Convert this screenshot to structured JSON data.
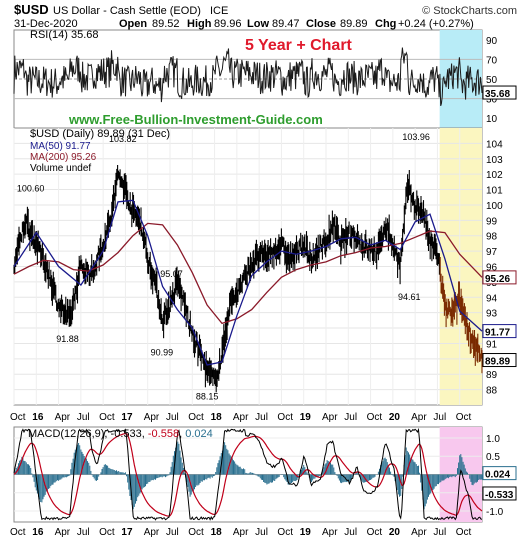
{
  "header": {
    "symbol": "$USD",
    "name": "US Dollar - Cash Settle (EOD)",
    "exchange": "ICE",
    "date": "31-Dec-2020",
    "open_label": "Open",
    "open": "89.52",
    "high_label": "High",
    "high": "89.96",
    "low_label": "Low",
    "low": "89.47",
    "close_label": "Close",
    "close": "89.89",
    "chg_label": "Chg",
    "chg": "+0.24 (+0.27%)",
    "brand": "© StockCharts.com",
    "tagline": "5 Year + Chart"
  },
  "colors": {
    "price": "#000000",
    "ma50": "#1a1a8c",
    "ma200": "#8b1a2a",
    "rsi_fill": "#1a1a1a",
    "macd_hist": "#2a6f8f",
    "cyan_band": "#b8ecf7",
    "yellow_band": "#fbf6c0",
    "pink_band": "#f8c8ee",
    "tagline": "#e0192b",
    "watermark": "#2e9d2e",
    "badge_red": "#c0001a"
  },
  "chart_data": [
    {
      "type": "line",
      "id": "rsi",
      "legend": "RSI(14) 35.68",
      "last_value": "35.68",
      "ylim": [
        0,
        100
      ],
      "y_ticks": [
        10,
        30,
        50,
        70,
        90
      ],
      "reference_lines": [
        30,
        50,
        70
      ]
    },
    {
      "type": "line",
      "id": "price",
      "title": "$USD (Daily) 89.89 (31 Dec)",
      "watermark": "www.Free-Bullion-Investment-Guide.com",
      "legend": [
        {
          "label": "MA(50) 91.77",
          "color": "#1a1a8c"
        },
        {
          "label": "MA(200) 95.26",
          "color": "#8b1a2a"
        },
        {
          "label": "Volume undef",
          "color": "#555555"
        }
      ],
      "ylim": [
        87,
        105
      ],
      "y_ticks": [
        88,
        89,
        90,
        91,
        92,
        93,
        94,
        95,
        96,
        97,
        98,
        99,
        100,
        101,
        102,
        103,
        104
      ],
      "x_ticks": [
        "Oct",
        "16",
        "Apr",
        "Jul",
        "Oct",
        "17",
        "Apr",
        "Jul",
        "Oct",
        "18",
        "Apr",
        "Jul",
        "Oct",
        "19",
        "Apr",
        "Jul",
        "Oct",
        "20",
        "Apr",
        "Jul",
        "Oct"
      ],
      "bold_x_ticks": [
        "16",
        "17",
        "18",
        "19",
        "20"
      ],
      "annotations": [
        {
          "label": "100.60",
          "x": 2.0,
          "y": 100.6
        },
        {
          "label": "103.82",
          "x": 14.4,
          "y": 103.82
        },
        {
          "label": "91.88",
          "x": 7.3,
          "y": 91.88
        },
        {
          "label": "90.99",
          "x": 20.0,
          "y": 90.99
        },
        {
          "label": "95.07",
          "x": 21.3,
          "y": 95.07
        },
        {
          "label": "88.15",
          "x": 26.1,
          "y": 88.15
        },
        {
          "label": "103.96",
          "x": 53.9,
          "y": 103.96
        },
        {
          "label": "94.61",
          "x": 53.3,
          "y": 94.61
        }
      ],
      "series": [
        {
          "name": "$USD",
          "x": [
            0,
            1.5,
            3,
            4.5,
            6,
            7.5,
            9,
            10.5,
            12,
            13,
            14,
            15,
            16,
            17,
            18,
            19,
            20,
            21,
            22,
            23,
            24,
            25,
            26,
            27,
            28,
            29,
            30,
            31,
            32,
            33,
            34,
            35,
            36,
            37,
            38,
            39,
            40,
            41,
            42,
            43,
            44,
            45,
            46,
            47,
            48,
            49,
            50,
            51,
            52,
            53,
            54,
            55,
            56,
            57,
            58,
            59,
            60,
            61,
            62,
            63
          ],
          "values": [
            96.0,
            99.0,
            97.5,
            95.8,
            93.5,
            92.5,
            96.0,
            95.5,
            97.5,
            99.0,
            102.0,
            101.0,
            99.5,
            99.0,
            96.5,
            95.0,
            92.5,
            93.5,
            95.0,
            93.5,
            91.5,
            90.5,
            89.2,
            88.6,
            90.2,
            93.5,
            94.3,
            95.2,
            96.2,
            96.7,
            96.6,
            97.0,
            97.4,
            96.5,
            96.8,
            97.6,
            96.2,
            97.2,
            97.6,
            98.6,
            97.5,
            98.1,
            98.0,
            97.3,
            97.1,
            96.9,
            98.8,
            97.4,
            96.0,
            101.3,
            99.9,
            99.6,
            97.5,
            96.9,
            93.3,
            92.9,
            93.9,
            92.1,
            90.9,
            89.9
          ]
        },
        {
          "name": "MA(50)",
          "x": [
            0,
            3,
            6,
            9,
            12,
            14,
            16,
            18,
            20,
            22,
            24,
            26,
            28,
            30,
            32,
            34,
            36,
            38,
            40,
            42,
            44,
            46,
            48,
            50,
            52,
            54,
            56,
            58,
            60,
            63
          ],
          "values": [
            96.0,
            98.2,
            96.0,
            94.8,
            97.0,
            100.2,
            100.3,
            98.0,
            94.7,
            93.2,
            92.0,
            89.6,
            89.8,
            92.8,
            95.4,
            96.3,
            97.0,
            96.8,
            97.0,
            97.3,
            97.8,
            97.9,
            97.4,
            97.7,
            97.1,
            98.9,
            99.4,
            96.5,
            93.1,
            91.8
          ]
        },
        {
          "name": "MA(200)",
          "x": [
            0,
            2,
            4,
            6,
            8,
            10,
            12,
            14,
            16,
            18,
            20,
            22,
            24,
            26,
            28,
            30,
            32,
            34,
            36,
            38,
            40,
            42,
            44,
            46,
            48,
            50,
            52,
            54,
            56,
            58,
            60,
            63
          ],
          "values": [
            95.5,
            96.0,
            96.4,
            96.3,
            95.8,
            95.7,
            96.1,
            96.9,
            98.0,
            98.8,
            98.7,
            97.4,
            95.6,
            93.5,
            92.3,
            92.6,
            93.2,
            94.3,
            95.3,
            95.8,
            96.1,
            96.3,
            96.7,
            96.9,
            97.2,
            97.3,
            97.5,
            97.9,
            98.3,
            98.2,
            96.8,
            95.3
          ]
        }
      ],
      "last_value_badges": [
        {
          "label": "95.26",
          "y": 95.26
        },
        {
          "label": "91.77",
          "y": 91.77
        },
        {
          "label": "89.89",
          "y": 89.89
        }
      ]
    },
    {
      "type": "line",
      "id": "macd",
      "legend": {
        "prefix": "MACD(12,26,9)",
        "macd": "-0.533",
        "signal": "-0.558",
        "hist": "0.024"
      },
      "ylim": [
        -1.3,
        1.3
      ],
      "y_ticks": [
        -1.0,
        -0.5,
        0.0,
        0.5,
        1.0
      ],
      "last_value_badges": [
        {
          "label": "0.024",
          "y": 0.024
        },
        {
          "label": "-0.533",
          "y": -0.533
        }
      ]
    }
  ]
}
